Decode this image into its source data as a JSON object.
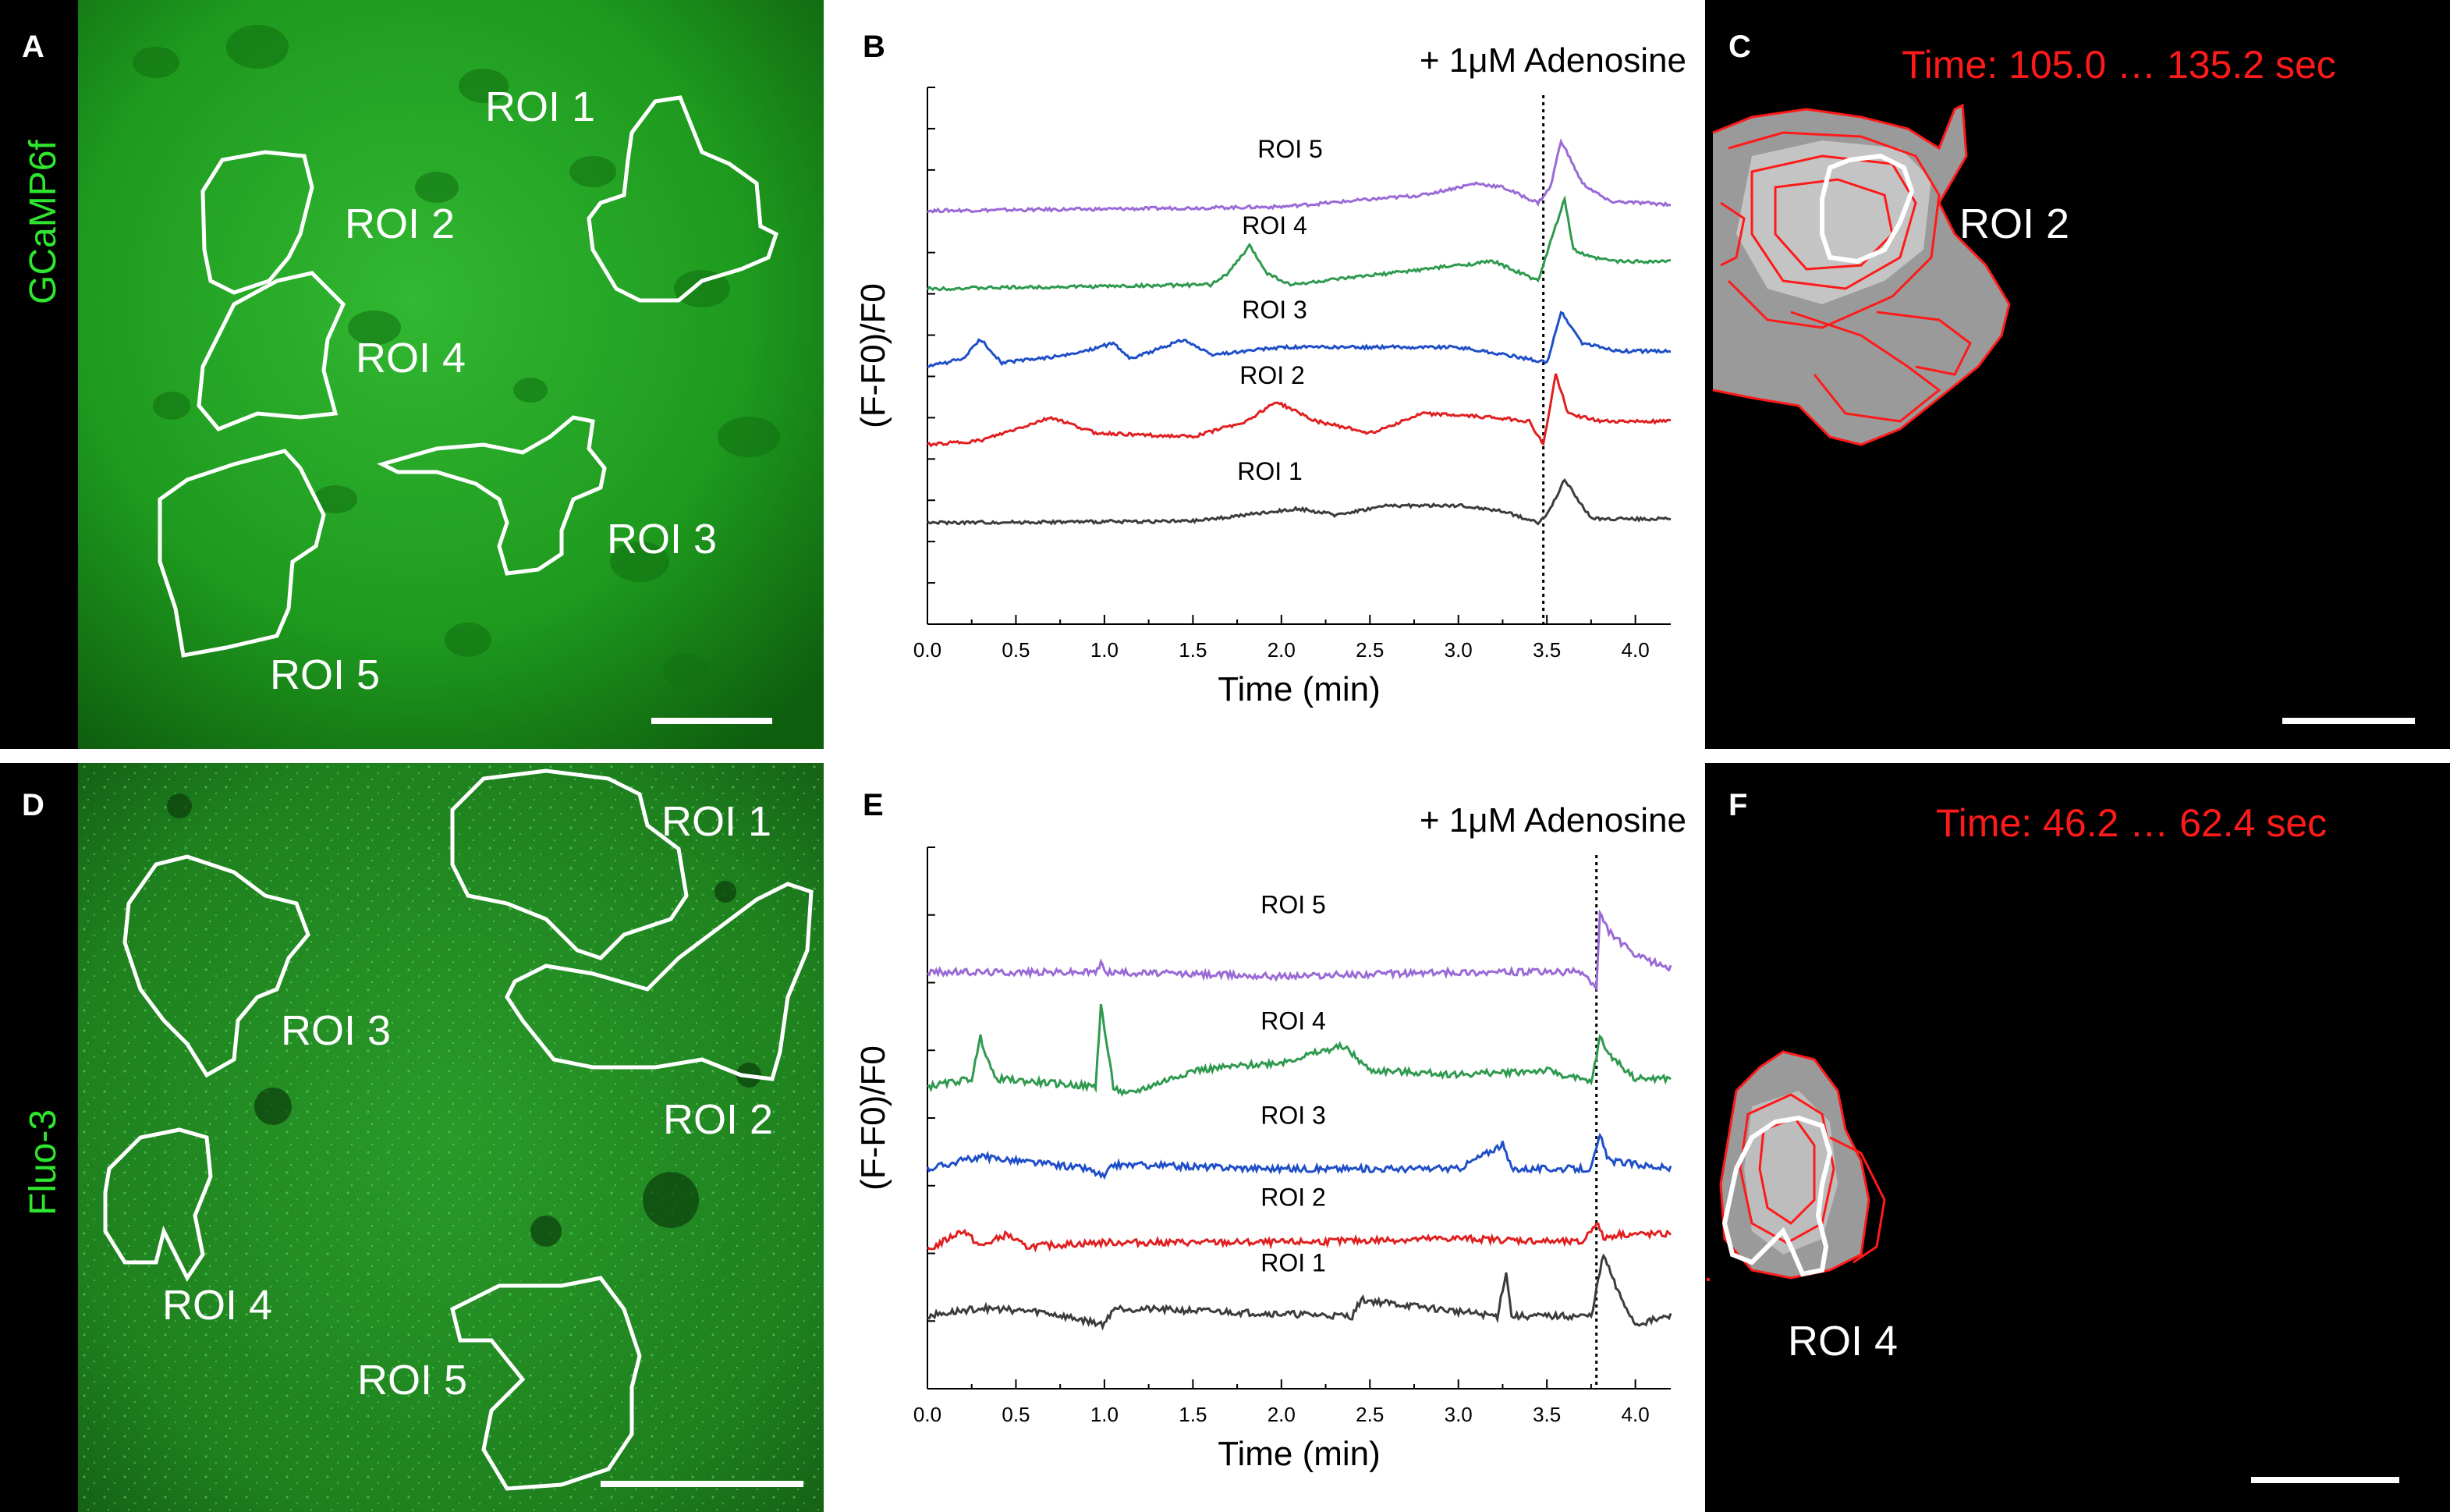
{
  "panels": {
    "A": {
      "letter": "A",
      "side_label": "GCaMP6f",
      "rois": [
        "ROI 1",
        "ROI 2",
        "ROI 3",
        "ROI 4",
        "ROI 5"
      ]
    },
    "B": {
      "letter": "B"
    },
    "C": {
      "letter": "C",
      "time": "Time: 105.0 … 135.2 sec",
      "roi": "ROI 2"
    },
    "D": {
      "letter": "D",
      "side_label": "Fluo-3",
      "rois": [
        "ROI 1",
        "ROI 2",
        "ROI 3",
        "ROI 4",
        "ROI 5"
      ]
    },
    "E": {
      "letter": "E"
    },
    "F": {
      "letter": "F",
      "time": "Time: 46.2 … 62.4 sec",
      "roi": "ROI 4"
    }
  },
  "colors": {
    "roi1": "#3c3c3c",
    "roi2": "#e02020",
    "roi3": "#1f4fc8",
    "roi4": "#2f9a4f",
    "roi5": "#9a6ad6",
    "micro_green": "#1fa31f",
    "overlay_red": "#ff1a1a"
  },
  "chart_data": [
    {
      "type": "line",
      "panel": "B",
      "annotation": "+ 1μM Adenosine",
      "xlabel": "Time (min)",
      "ylabel": "(F-F0)/F0",
      "xlim": [
        0,
        4.2
      ],
      "xticks": [
        "0.0",
        "0.5",
        "1.0",
        "1.5",
        "2.0",
        "2.5",
        "3.0",
        "3.5",
        "4.0"
      ],
      "event_x": 3.48,
      "series": [
        {
          "name": "ROI 5",
          "color": "#9a6ad6",
          "baseline": 0.0,
          "t": [
            0,
            1.0,
            2.0,
            2.8,
            3.1,
            3.25,
            3.45,
            3.52,
            3.58,
            3.7,
            3.85,
            4.2
          ],
          "v": [
            0,
            0.02,
            0.05,
            0.2,
            0.35,
            0.3,
            0.1,
            0.3,
            0.9,
            0.35,
            0.12,
            0.08
          ]
        },
        {
          "name": "ROI 4",
          "color": "#2f9a4f",
          "baseline": -1.0,
          "t": [
            0,
            1.6,
            1.7,
            1.82,
            1.92,
            2.05,
            3.0,
            3.2,
            3.45,
            3.55,
            3.6,
            3.65,
            3.75,
            3.9,
            4.2
          ],
          "v": [
            0,
            0.05,
            0.2,
            0.55,
            0.2,
            0.05,
            0.3,
            0.35,
            0.1,
            0.8,
            1.15,
            0.5,
            0.4,
            0.35,
            0.35
          ]
        },
        {
          "name": "ROI 3",
          "color": "#1f4fc8",
          "baseline": -2.0,
          "t": [
            0,
            0.2,
            0.3,
            0.42,
            0.8,
            1.05,
            1.15,
            1.45,
            1.6,
            2.0,
            3.0,
            3.4,
            3.5,
            3.58,
            3.7,
            3.9,
            4.2
          ],
          "v": [
            0,
            0.1,
            0.35,
            0.05,
            0.15,
            0.3,
            0.1,
            0.35,
            0.15,
            0.25,
            0.25,
            0.1,
            0.05,
            0.7,
            0.3,
            0.2,
            0.2
          ]
        },
        {
          "name": "ROI 2",
          "color": "#e02020",
          "baseline": -3.0,
          "t": [
            0,
            0.3,
            0.5,
            0.7,
            0.95,
            1.5,
            1.8,
            1.97,
            2.2,
            2.5,
            2.8,
            3.2,
            3.4,
            3.48,
            3.55,
            3.62,
            3.8,
            4.2
          ],
          "v": [
            0,
            0.05,
            0.2,
            0.35,
            0.15,
            0.1,
            0.3,
            0.55,
            0.3,
            0.15,
            0.4,
            0.35,
            0.3,
            0.0,
            0.9,
            0.4,
            0.3,
            0.3
          ]
        },
        {
          "name": "ROI 1",
          "color": "#3c3c3c",
          "baseline": -4.0,
          "t": [
            0,
            1.5,
            2.1,
            2.3,
            2.6,
            3.0,
            3.25,
            3.45,
            3.5,
            3.6,
            3.75,
            4.2
          ],
          "v": [
            0,
            0.02,
            0.18,
            0.1,
            0.22,
            0.22,
            0.15,
            0.0,
            0.1,
            0.55,
            0.05,
            0.05
          ]
        }
      ]
    },
    {
      "type": "line",
      "panel": "E",
      "annotation": "+ 1μM Adenosine",
      "xlabel": "Time (min)",
      "ylabel": "(F-F0)/F0",
      "xlim": [
        0,
        4.2
      ],
      "xticks": [
        "0.0",
        "0.5",
        "1.0",
        "1.5",
        "2.0",
        "2.5",
        "3.0",
        "3.5",
        "4.0"
      ],
      "event_x": 3.78,
      "series": [
        {
          "name": "ROI 5",
          "color": "#9a6ad6",
          "baseline": 0.0,
          "t": [
            0,
            0.95,
            0.98,
            1.02,
            2.0,
            3.0,
            3.7,
            3.78,
            3.8,
            3.85,
            4.0,
            4.2
          ],
          "v": [
            0,
            0.0,
            0.1,
            0.0,
            -0.05,
            0.0,
            0.0,
            -0.2,
            0.7,
            0.5,
            0.2,
            0.05
          ]
        },
        {
          "name": "ROI 4",
          "color": "#2f9a4f",
          "baseline": -1.4,
          "t": [
            0,
            0.25,
            0.3,
            0.38,
            0.95,
            0.98,
            1.05,
            1.12,
            1.5,
            2.0,
            2.35,
            2.5,
            3.0,
            3.5,
            3.75,
            3.8,
            3.85,
            4.0,
            4.2
          ],
          "v": [
            0,
            0.1,
            0.6,
            0.1,
            0.0,
            1.0,
            0.0,
            -0.1,
            0.2,
            0.3,
            0.5,
            0.2,
            0.15,
            0.2,
            0.05,
            0.6,
            0.4,
            0.1,
            0.1
          ]
        },
        {
          "name": "ROI 3",
          "color": "#1f4fc8",
          "baseline": -2.4,
          "t": [
            0,
            0.3,
            0.9,
            1.0,
            1.05,
            2.0,
            3.0,
            3.25,
            3.3,
            3.75,
            3.8,
            3.85,
            4.2
          ],
          "v": [
            0,
            0.15,
            0.0,
            -0.1,
            0.05,
            0.0,
            0.0,
            0.3,
            0.0,
            0.0,
            0.4,
            0.1,
            0.0
          ]
        },
        {
          "name": "ROI 2",
          "color": "#e02020",
          "baseline": -3.4,
          "t": [
            0,
            0.2,
            0.3,
            0.45,
            0.55,
            1.0,
            2.0,
            3.0,
            3.7,
            3.78,
            3.82,
            3.9,
            4.2
          ],
          "v": [
            0,
            0.25,
            0.05,
            0.2,
            0.05,
            0.1,
            0.1,
            0.15,
            0.1,
            0.35,
            0.15,
            0.2,
            0.2
          ]
        },
        {
          "name": "ROI 1",
          "color": "#3c3c3c",
          "baseline": -4.2,
          "t": [
            0,
            0.3,
            0.65,
            1.0,
            1.05,
            2.4,
            2.45,
            3.22,
            3.27,
            3.3,
            3.75,
            3.82,
            3.9,
            4.0,
            4.2
          ],
          "v": [
            0,
            0.1,
            0.05,
            -0.1,
            0.1,
            0.0,
            0.2,
            0.0,
            0.55,
            0.0,
            0.0,
            0.75,
            0.3,
            -0.1,
            0.0
          ]
        }
      ]
    }
  ]
}
